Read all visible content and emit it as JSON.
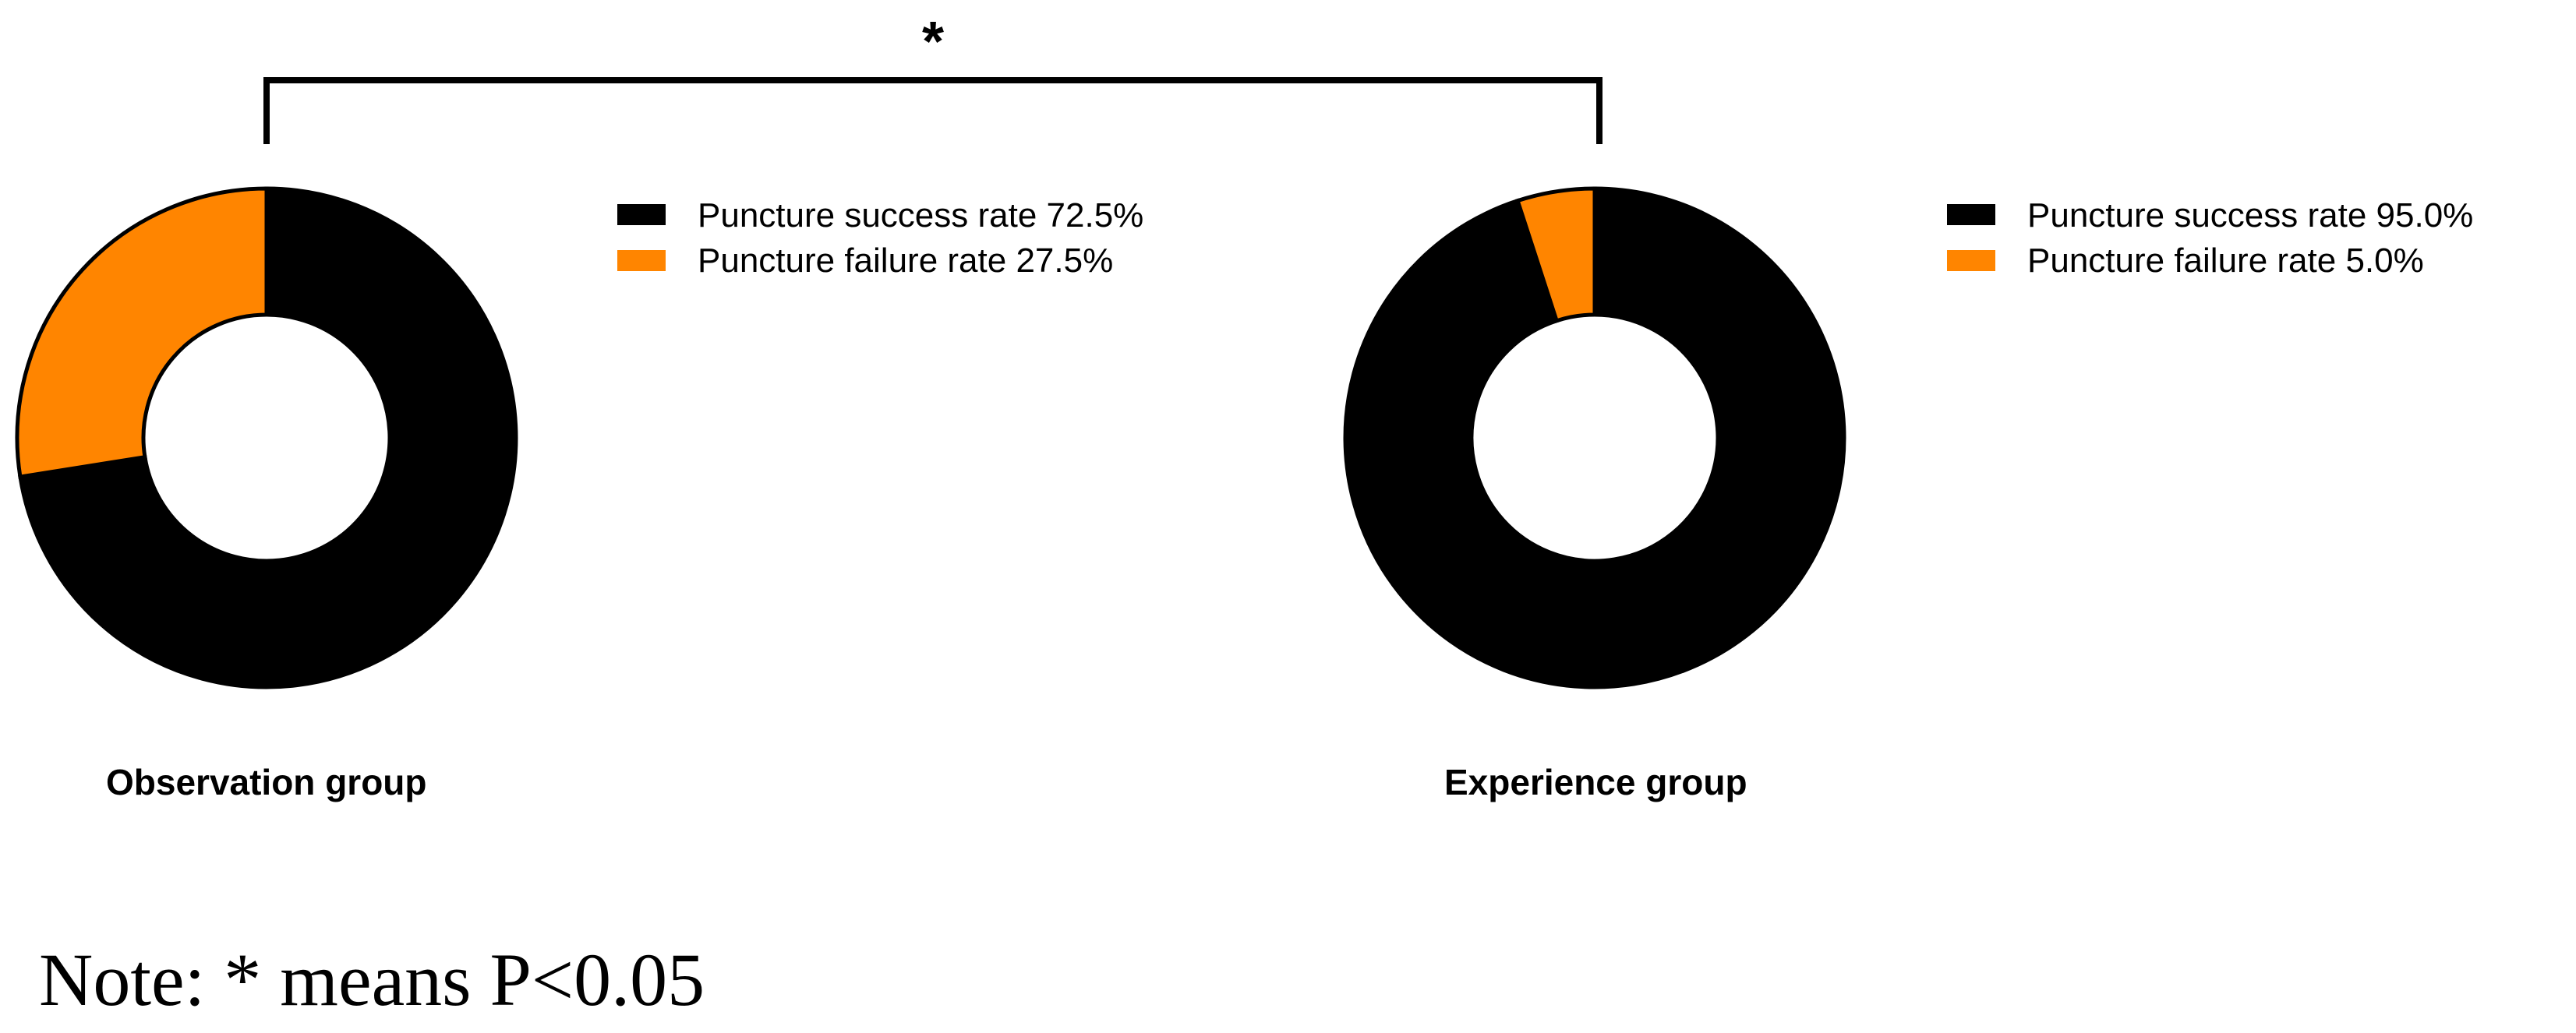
{
  "chart_data": [
    {
      "type": "pie",
      "variant": "donut",
      "title": "Observation group",
      "categories": [
        "Puncture success rate 72.5%",
        "Puncture failure rate 27.5%"
      ],
      "values": [
        72.5,
        27.5
      ],
      "colors": [
        "#000000",
        "#ff8500"
      ],
      "legend_position": "right"
    },
    {
      "type": "pie",
      "variant": "donut",
      "title": "Experience group",
      "categories": [
        "Puncture success rate 95.0%",
        "Puncture failure rate 5.0%"
      ],
      "values": [
        95.0,
        5.0
      ],
      "colors": [
        "#000000",
        "#ff8500"
      ],
      "legend_position": "right"
    }
  ],
  "significance": {
    "marker": "*"
  },
  "note": "Note: * means P<0.05"
}
